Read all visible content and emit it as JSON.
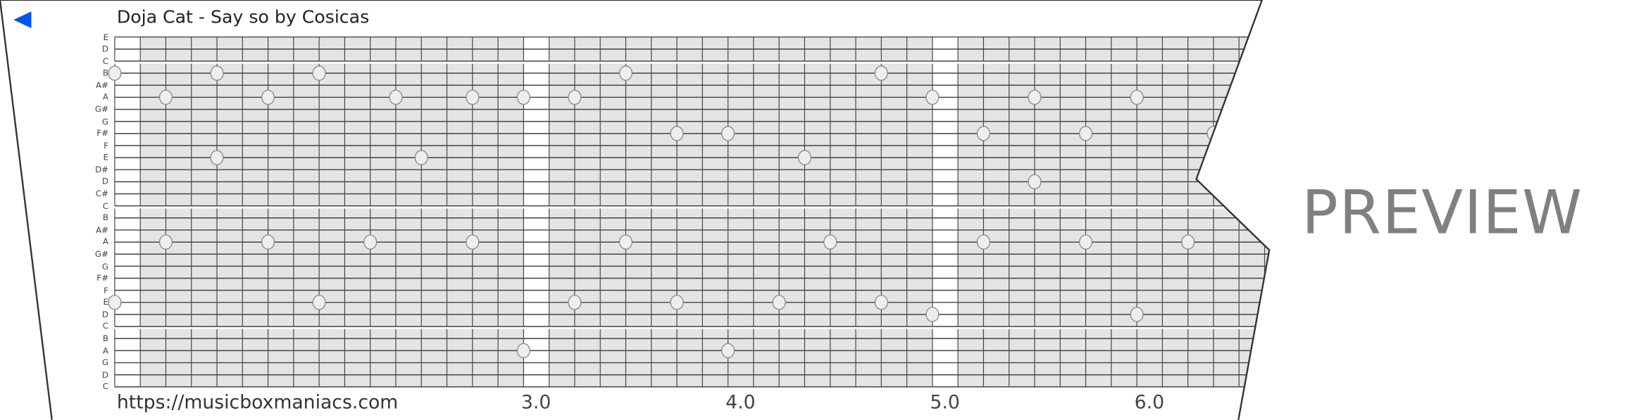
{
  "header": {
    "title": "Doja Cat - Say so by Cosicas",
    "back_icon": "back-arrow-icon"
  },
  "footer": {
    "url": "https://musicboxmaniacs.com",
    "ticks": [
      "3.0",
      "4.0",
      "5.0",
      "6.0"
    ]
  },
  "watermark": "PREVIEW",
  "colors": {
    "back_arrow": "#0055ee",
    "grid_fill": "#e4e4e4",
    "grid_line": "#444444",
    "note_fill": "#eeeeee",
    "watermark": "#808080"
  },
  "strip": {
    "row_labels": [
      "E",
      "D",
      "C",
      "B",
      "A#",
      "A",
      "G#",
      "G",
      "F#",
      "F",
      "E",
      "D#",
      "D",
      "C#",
      "C",
      "B",
      "A#",
      "A",
      "G#",
      "G",
      "F#",
      "F",
      "E",
      "D",
      "C",
      "B",
      "A",
      "G",
      "D",
      "C"
    ],
    "columns": 44,
    "blank_columns": [
      0,
      16,
      32
    ],
    "notes": [
      {
        "row": 3,
        "col": 0
      },
      {
        "row": 3,
        "col": 4
      },
      {
        "row": 3,
        "col": 8
      },
      {
        "row": 3,
        "col": 20
      },
      {
        "row": 3,
        "col": 30
      },
      {
        "row": 5,
        "col": 2
      },
      {
        "row": 5,
        "col": 6
      },
      {
        "row": 5,
        "col": 11
      },
      {
        "row": 5,
        "col": 14
      },
      {
        "row": 5,
        "col": 16
      },
      {
        "row": 5,
        "col": 18
      },
      {
        "row": 5,
        "col": 32
      },
      {
        "row": 5,
        "col": 36
      },
      {
        "row": 5,
        "col": 40
      },
      {
        "row": 8,
        "col": 22
      },
      {
        "row": 8,
        "col": 24
      },
      {
        "row": 8,
        "col": 34
      },
      {
        "row": 8,
        "col": 38
      },
      {
        "row": 8,
        "col": 43
      },
      {
        "row": 10,
        "col": 4
      },
      {
        "row": 10,
        "col": 12
      },
      {
        "row": 10,
        "col": 27
      },
      {
        "row": 12,
        "col": 36
      },
      {
        "row": 17,
        "col": 2
      },
      {
        "row": 17,
        "col": 6
      },
      {
        "row": 17,
        "col": 10
      },
      {
        "row": 17,
        "col": 14
      },
      {
        "row": 17,
        "col": 20
      },
      {
        "row": 17,
        "col": 28
      },
      {
        "row": 17,
        "col": 34
      },
      {
        "row": 17,
        "col": 38
      },
      {
        "row": 17,
        "col": 42
      },
      {
        "row": 22,
        "col": 0
      },
      {
        "row": 22,
        "col": 8
      },
      {
        "row": 22,
        "col": 18
      },
      {
        "row": 22,
        "col": 22
      },
      {
        "row": 22,
        "col": 26
      },
      {
        "row": 22,
        "col": 30
      },
      {
        "row": 23,
        "col": 32
      },
      {
        "row": 23,
        "col": 40
      },
      {
        "row": 26,
        "col": 16
      },
      {
        "row": 26,
        "col": 24
      }
    ]
  }
}
